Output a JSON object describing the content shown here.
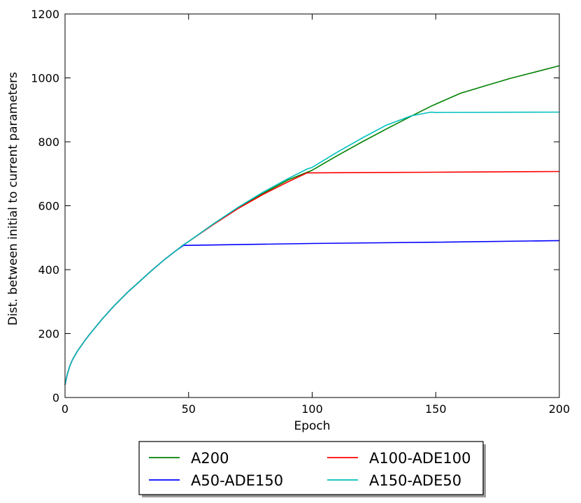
{
  "chart_data": {
    "type": "line",
    "title": "",
    "xlabel": "Epoch",
    "ylabel": "Dist. between initial to current parameters",
    "xlim": [
      0,
      200
    ],
    "ylim": [
      0,
      1200
    ],
    "xticks": [
      0,
      50,
      100,
      150,
      200
    ],
    "yticks": [
      0,
      200,
      400,
      600,
      800,
      1000,
      1200
    ],
    "grid": false,
    "legend": {
      "placement": "below-plot",
      "columns": 2
    },
    "series": [
      {
        "name": "A200",
        "color": "#008000",
        "x": [
          0,
          1,
          2,
          3,
          5,
          8,
          10,
          15,
          20,
          25,
          30,
          35,
          40,
          45,
          48,
          50,
          60,
          70,
          80,
          90,
          98,
          100,
          110,
          120,
          130,
          140,
          148,
          150,
          160,
          170,
          180,
          190,
          200
        ],
        "y": [
          40,
          75,
          100,
          118,
          145,
          178,
          198,
          245,
          288,
          327,
          362,
          397,
          430,
          460,
          478,
          488,
          543,
          593,
          638,
          680,
          705,
          711,
          756,
          799,
          840,
          880,
          911,
          918,
          952,
          975,
          998,
          1018,
          1038
        ]
      },
      {
        "name": "A50-ADE150",
        "color": "#0000ff",
        "x": [
          0,
          1,
          2,
          3,
          5,
          8,
          10,
          15,
          20,
          25,
          30,
          35,
          40,
          45,
          48,
          50,
          100,
          150,
          200
        ],
        "y": [
          40,
          75,
          100,
          118,
          145,
          178,
          198,
          245,
          288,
          327,
          362,
          397,
          430,
          460,
          476,
          476,
          482,
          486,
          491
        ]
      },
      {
        "name": "A100-ADE100",
        "color": "#ff0000",
        "x": [
          0,
          1,
          2,
          3,
          5,
          8,
          10,
          15,
          20,
          25,
          30,
          35,
          40,
          45,
          48,
          50,
          60,
          70,
          80,
          90,
          98,
          100,
          150,
          200
        ],
        "y": [
          40,
          75,
          100,
          118,
          145,
          178,
          198,
          245,
          288,
          327,
          362,
          397,
          430,
          460,
          478,
          488,
          541,
          591,
          635,
          674,
          703,
          703,
          705,
          707
        ]
      },
      {
        "name": "A150-ADE50",
        "color": "#00bfbf",
        "x": [
          0,
          1,
          2,
          3,
          5,
          8,
          10,
          15,
          20,
          25,
          30,
          35,
          40,
          45,
          48,
          50,
          60,
          70,
          80,
          90,
          98,
          100,
          110,
          120,
          130,
          140,
          148,
          150,
          200
        ],
        "y": [
          40,
          75,
          100,
          118,
          145,
          178,
          198,
          245,
          288,
          327,
          362,
          397,
          430,
          460,
          478,
          488,
          543,
          595,
          642,
          684,
          715,
          720,
          767,
          811,
          852,
          881,
          893,
          892,
          893
        ]
      }
    ]
  }
}
